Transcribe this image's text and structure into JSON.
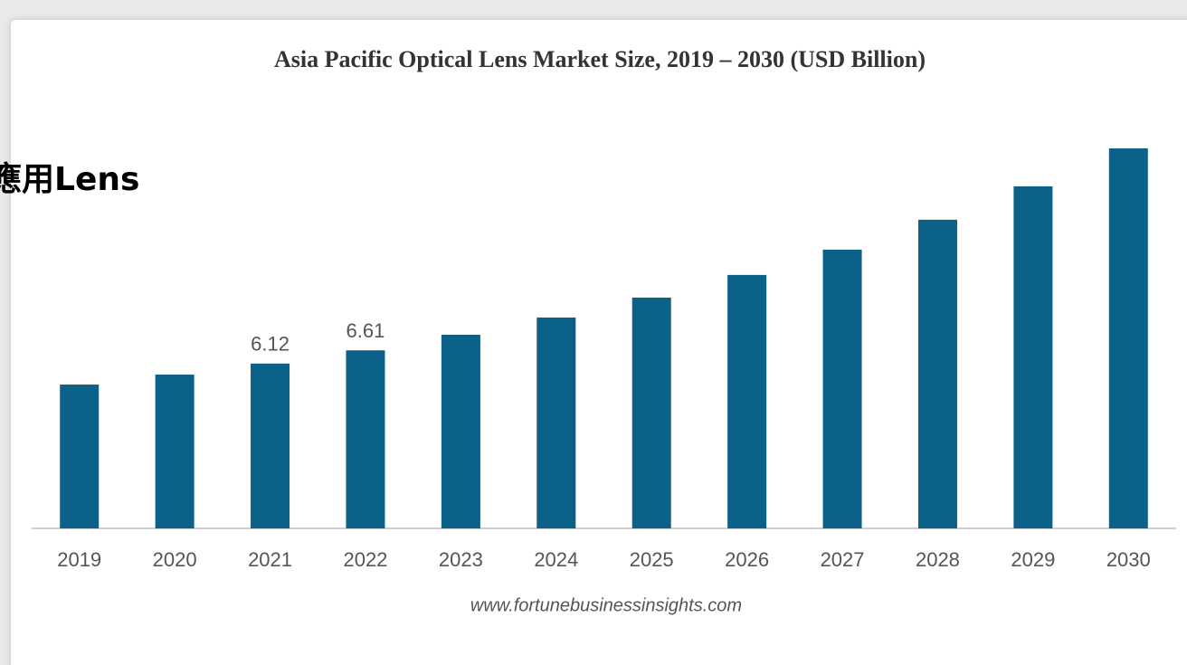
{
  "chart_data": {
    "type": "bar",
    "title": "Asia Pacific Optical Lens Market Size, 2019 – 2030 (USD Billion)",
    "categories": [
      "2019",
      "2020",
      "2021",
      "2022",
      "2023",
      "2024",
      "2025",
      "2026",
      "2027",
      "2028",
      "2029",
      "2030"
    ],
    "values": [
      5.34,
      5.71,
      6.12,
      6.61,
      7.19,
      7.83,
      8.57,
      9.41,
      10.35,
      11.46,
      12.7,
      14.11
    ],
    "value_labels": [
      null,
      null,
      "6.12",
      "6.61",
      null,
      null,
      null,
      null,
      null,
      null,
      null,
      null
    ],
    "color": "#0b6187",
    "source": "www.fortunebusinessinsights.com",
    "overlay_text": "應用Lens"
  }
}
